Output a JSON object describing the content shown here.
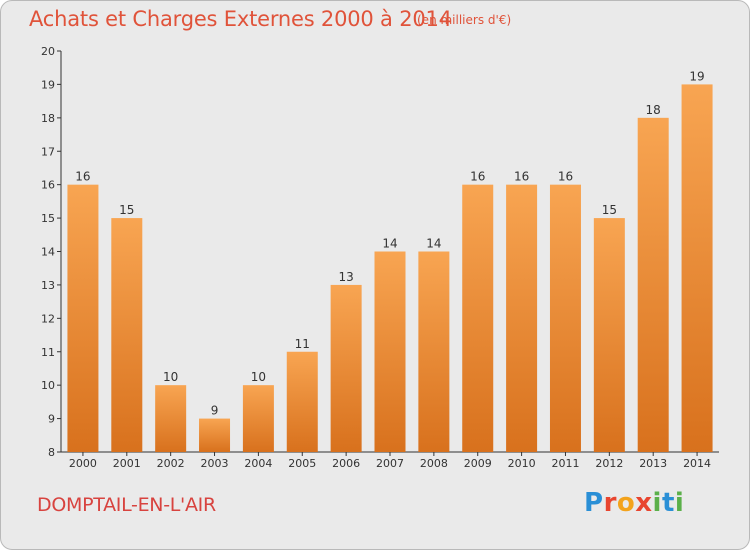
{
  "header": {
    "title": "Achats et Charges Externes 2000 à 2014",
    "subtitle": "(en milliers d'€)"
  },
  "footer": {
    "commune": "DOMPTAIL-EN-L'AIR",
    "brand": "Proxiti",
    "brand_letters": [
      {
        "ch": "P",
        "color": "#2a8fd6"
      },
      {
        "ch": "r",
        "color": "#e8452f"
      },
      {
        "ch": "o",
        "color": "#f3a31c"
      },
      {
        "ch": "x",
        "color": "#e8452f"
      },
      {
        "ch": "i",
        "color": "#5bb04a"
      },
      {
        "ch": "t",
        "color": "#2a8fd6"
      },
      {
        "ch": "i",
        "color": "#5bb04a"
      }
    ]
  },
  "chart_data": {
    "type": "bar",
    "title": "Achats et Charges Externes 2000 à 2014",
    "subtitle": "(en milliers d'€)",
    "xlabel": "",
    "ylabel": "",
    "categories": [
      "2000",
      "2001",
      "2002",
      "2003",
      "2004",
      "2005",
      "2006",
      "2007",
      "2008",
      "2009",
      "2010",
      "2011",
      "2012",
      "2013",
      "2014"
    ],
    "values": [
      16,
      15,
      10,
      9,
      10,
      11,
      13,
      14,
      14,
      16,
      16,
      16,
      15,
      18,
      19
    ],
    "ylim": [
      8,
      20
    ],
    "yticks": [
      8,
      9,
      10,
      11,
      12,
      13,
      14,
      15,
      16,
      17,
      18,
      19,
      20
    ],
    "grid": false,
    "legend": "none",
    "colors": {
      "bar_light": "#f8a552",
      "bar_dark": "#d8711d",
      "axis": "#333333",
      "title": "#e0533a"
    }
  }
}
